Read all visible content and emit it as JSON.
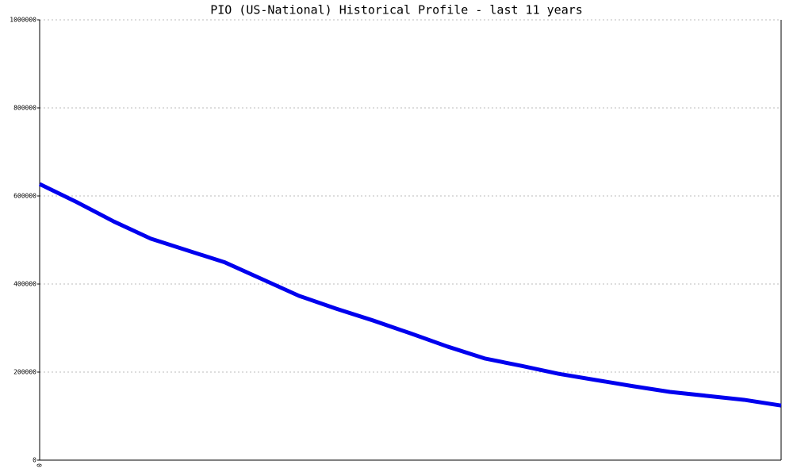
{
  "chart_data": {
    "type": "line",
    "title": "PIO (US-National) Historical Profile - last 11 years",
    "categories": [
      "0",
      null,
      null,
      null,
      null,
      null,
      null,
      null,
      null,
      null,
      null,
      null,
      null,
      null,
      null,
      null,
      null,
      null,
      null,
      null,
      null
    ],
    "series": [
      {
        "color": "#0000ee",
        "values": [
          627000,
          586000,
          542000,
          503000,
          476000,
          449000,
          411000,
          373000,
          344000,
          317000,
          288000,
          258000,
          231000,
          214000,
          196000,
          182000,
          168000,
          155000,
          146000,
          137000,
          124000
        ]
      }
    ],
    "ylim": [
      0,
      1000000
    ],
    "yticks": [
      0,
      200000,
      400000,
      600000,
      800000,
      1000000
    ],
    "grid": true
  }
}
